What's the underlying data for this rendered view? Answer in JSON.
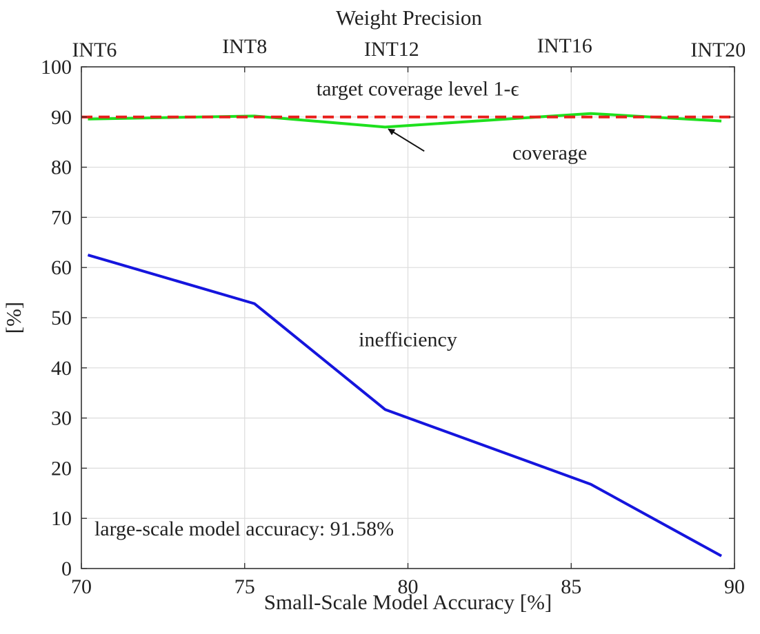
{
  "chart_data": {
    "type": "line",
    "title": "",
    "xlabel": "Small-Scale Model Accuracy [%]",
    "ylabel": "[%]",
    "xlim": [
      70,
      90
    ],
    "ylim": [
      0,
      100
    ],
    "xticks": [
      70,
      75,
      80,
      85,
      90
    ],
    "yticks": [
      0,
      10,
      20,
      30,
      40,
      50,
      60,
      70,
      80,
      90,
      100
    ],
    "grid": true,
    "top_axis": {
      "label": "Weight Precision",
      "ticks": [
        {
          "x": 70.4,
          "label": "INT6"
        },
        {
          "x": 75.0,
          "label": "INT8"
        },
        {
          "x": 79.5,
          "label": "INT12"
        },
        {
          "x": 84.8,
          "label": "INT16"
        },
        {
          "x": 89.5,
          "label": "INT20"
        }
      ]
    },
    "series": [
      {
        "name": "coverage",
        "color": "#1ee01e",
        "style": "solid",
        "x": [
          70.2,
          75.3,
          79.3,
          85.6,
          89.6
        ],
        "y": [
          89.6,
          90.2,
          88.0,
          90.7,
          89.2
        ]
      },
      {
        "name": "target coverage level 1-ε",
        "color": "#e8201c",
        "style": "dashed",
        "x": [
          70,
          90
        ],
        "y": [
          90,
          90
        ]
      },
      {
        "name": "inefficiency",
        "color": "#1515dd",
        "style": "solid",
        "x": [
          70.2,
          75.3,
          79.3,
          85.6,
          89.6
        ],
        "y": [
          62.5,
          52.8,
          31.7,
          16.8,
          2.5
        ]
      }
    ],
    "annotations": [
      {
        "id": "target",
        "text": "target coverage level 1-ϵ",
        "x": 80.3,
        "y": 94.3
      },
      {
        "id": "coverage",
        "text": "coverage",
        "x": 83.2,
        "y": 81.5
      },
      {
        "id": "inefficiency",
        "text": "inefficiency",
        "x": 80.0,
        "y": 44.3
      },
      {
        "id": "accuracy",
        "text": "large-scale model accuracy: 91.58%",
        "x": 70.4,
        "y": 6.6
      }
    ],
    "arrow": {
      "from": {
        "x": 80.5,
        "y": 83.2
      },
      "to": {
        "x": 79.4,
        "y": 87.6
      }
    }
  }
}
